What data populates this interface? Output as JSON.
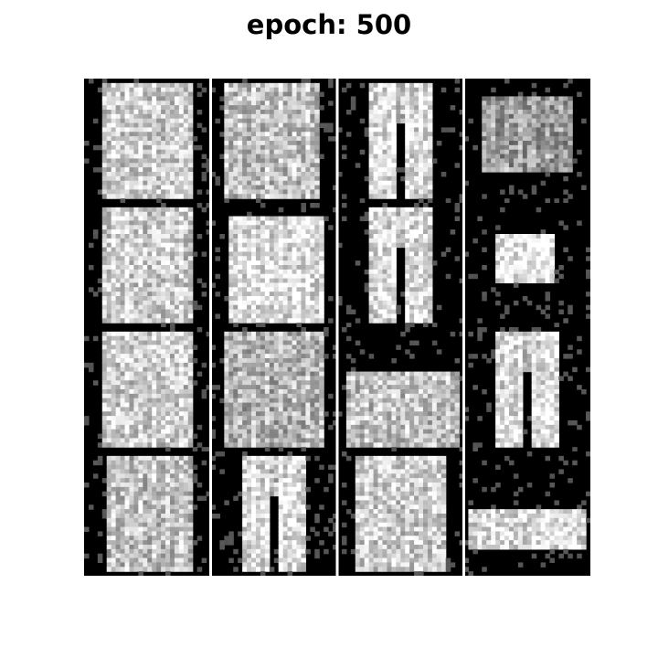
{
  "title": "epoch: 500",
  "colors": {
    "background": "#ffffff",
    "tile_background": "#000000",
    "separator": "#ffffff"
  },
  "samples": {
    "rows": 4,
    "cols": 4,
    "tiles": [
      {
        "kind": "shirt"
      },
      {
        "kind": "shirt-round"
      },
      {
        "kind": "pants"
      },
      {
        "kind": "bag"
      },
      {
        "kind": "shirt"
      },
      {
        "kind": "shirt-box"
      },
      {
        "kind": "pants"
      },
      {
        "kind": "small-top"
      },
      {
        "kind": "shirt"
      },
      {
        "kind": "dress"
      },
      {
        "kind": "bag-low"
      },
      {
        "kind": "pants"
      },
      {
        "kind": "coat"
      },
      {
        "kind": "pants"
      },
      {
        "kind": "shirt"
      },
      {
        "kind": "shoe"
      }
    ]
  }
}
